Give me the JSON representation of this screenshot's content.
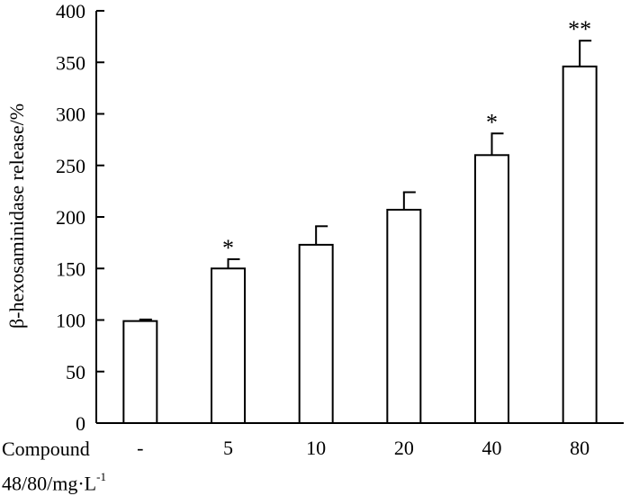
{
  "chart_data": {
    "type": "bar",
    "title": "",
    "ylabel": "β-hexosaminidase release/%",
    "xlabel_line1": "Compound",
    "xlabel_line2": "48/80/mg·L",
    "xlabel_superscript": "-1",
    "categories": [
      "-",
      "5",
      "10",
      "20",
      "40",
      "80"
    ],
    "values": [
      99,
      150,
      173,
      207,
      260,
      346
    ],
    "errors": [
      1.5,
      9,
      18,
      17,
      21,
      25
    ],
    "significance": [
      "",
      "*",
      "",
      "",
      "*",
      "**"
    ],
    "ylim": [
      0,
      400
    ],
    "yticks": [
      0,
      50,
      100,
      150,
      200,
      250,
      300,
      350,
      400
    ],
    "grid": false,
    "bar_fill": "#ffffff",
    "bar_stroke": "#000000"
  }
}
